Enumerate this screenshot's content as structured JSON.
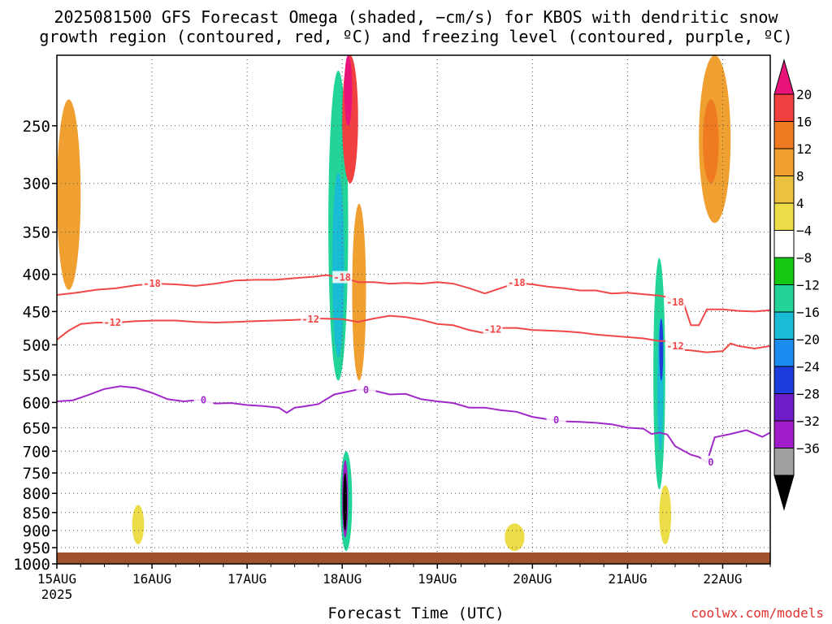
{
  "title": {
    "line1": "2025081500 GFS Forecast Omega (shaded, −cm/s) for KBOS with dendritic snow",
    "line2": "growth region (contoured, red, ºC) and freezing level (contoured, purple, ºC)"
  },
  "credit": "coolwx.com/models",
  "chart_data": {
    "type": "heatmap",
    "title": "2025081500 GFS Forecast Omega (shaded, −cm/s) for KBOS with dendritic snow growth region (contoured, red, ºC) and freezing level (contoured, purple, ºC)",
    "xlabel": "Forecast Time (UTC)",
    "ylabel": "",
    "x_ticks": [
      "15AUG",
      "16AUG",
      "17AUG",
      "18AUG",
      "19AUG",
      "20AUG",
      "21AUG",
      "22AUG"
    ],
    "x_tick_sub": "2025",
    "x_range_hours": [
      0,
      180
    ],
    "y_ticks": [
      250,
      300,
      350,
      400,
      450,
      500,
      550,
      600,
      650,
      700,
      750,
      800,
      850,
      900,
      950,
      1000
    ],
    "y_range_hpa": [
      200,
      1000
    ],
    "y_reversed": true,
    "grid": true,
    "colorbar": {
      "ticks": [
        "20",
        "16",
        "12",
        "8",
        "4",
        "−4",
        "−8",
        "−12",
        "−16",
        "−20",
        "−24",
        "−28",
        "−32",
        "−36"
      ],
      "colors": [
        "#e8147a",
        "#f04040",
        "#f07a20",
        "#f0a030",
        "#ecc040",
        "#ecdc48",
        "#ffffff",
        "#14c814",
        "#22d49a",
        "#18bcd4",
        "#1c8cf0",
        "#1c3cdc",
        "#6e1cc8",
        "#a01cc8",
        "#a0a0a0",
        "#000000"
      ]
    },
    "series": [
      {
        "name": "-18",
        "color": "#f04848",
        "points": [
          [
            0,
            427
          ],
          [
            5,
            424
          ],
          [
            10,
            420
          ],
          [
            15,
            418
          ],
          [
            20,
            414
          ],
          [
            25,
            412
          ],
          [
            30,
            413
          ],
          [
            35,
            415
          ],
          [
            40,
            412
          ],
          [
            45,
            408
          ],
          [
            50,
            407
          ],
          [
            55,
            407
          ],
          [
            60,
            405
          ],
          [
            65,
            403
          ],
          [
            68,
            401
          ],
          [
            72,
            404
          ],
          [
            76,
            410
          ],
          [
            80,
            410
          ],
          [
            84,
            412
          ],
          [
            88,
            411
          ],
          [
            92,
            412
          ],
          [
            96,
            410
          ],
          [
            100,
            412
          ],
          [
            104,
            418
          ],
          [
            108,
            425
          ],
          [
            112,
            418
          ],
          [
            116,
            411
          ],
          [
            120,
            413
          ],
          [
            124,
            416
          ],
          [
            128,
            418
          ],
          [
            132,
            421
          ],
          [
            136,
            421
          ],
          [
            140,
            425
          ],
          [
            144,
            424
          ],
          [
            148,
            426
          ],
          [
            152,
            428
          ],
          [
            154,
            430
          ],
          [
            156,
            437
          ],
          [
            158,
            436
          ],
          [
            160,
            470
          ],
          [
            162,
            470
          ],
          [
            164,
            447
          ],
          [
            168,
            447
          ],
          [
            172,
            449
          ],
          [
            176,
            450
          ],
          [
            180,
            448
          ]
        ]
      },
      {
        "name": "-12",
        "color": "#f04848",
        "points": [
          [
            0,
            492
          ],
          [
            3,
            478
          ],
          [
            6,
            468
          ],
          [
            10,
            466
          ],
          [
            15,
            466
          ],
          [
            20,
            464
          ],
          [
            25,
            463
          ],
          [
            30,
            463
          ],
          [
            35,
            465
          ],
          [
            40,
            466
          ],
          [
            45,
            465
          ],
          [
            50,
            464
          ],
          [
            55,
            463
          ],
          [
            60,
            462
          ],
          [
            66,
            460
          ],
          [
            72,
            461
          ],
          [
            76,
            465
          ],
          [
            80,
            460
          ],
          [
            84,
            456
          ],
          [
            88,
            458
          ],
          [
            92,
            462
          ],
          [
            96,
            468
          ],
          [
            100,
            470
          ],
          [
            104,
            477
          ],
          [
            108,
            482
          ],
          [
            112,
            474
          ],
          [
            116,
            474
          ],
          [
            120,
            477
          ],
          [
            124,
            478
          ],
          [
            128,
            479
          ],
          [
            132,
            481
          ],
          [
            136,
            484
          ],
          [
            140,
            486
          ],
          [
            144,
            488
          ],
          [
            148,
            490
          ],
          [
            152,
            494
          ],
          [
            154,
            494
          ],
          [
            156,
            502
          ],
          [
            158,
            508
          ],
          [
            160,
            509
          ],
          [
            164,
            512
          ],
          [
            168,
            510
          ],
          [
            170,
            498
          ],
          [
            172,
            502
          ],
          [
            176,
            506
          ],
          [
            180,
            502
          ]
        ]
      },
      {
        "name": "0",
        "color": "#a028c8",
        "points": [
          [
            0,
            598
          ],
          [
            4,
            596
          ],
          [
            8,
            586
          ],
          [
            12,
            575
          ],
          [
            16,
            570
          ],
          [
            20,
            573
          ],
          [
            24,
            582
          ],
          [
            28,
            594
          ],
          [
            32,
            598
          ],
          [
            36,
            595
          ],
          [
            40,
            602
          ],
          [
            44,
            601
          ],
          [
            48,
            605
          ],
          [
            52,
            607
          ],
          [
            56,
            610
          ],
          [
            58,
            620
          ],
          [
            60,
            610
          ],
          [
            62,
            608
          ],
          [
            66,
            603
          ],
          [
            70,
            585
          ],
          [
            76,
            576
          ],
          [
            80,
            578
          ],
          [
            84,
            585
          ],
          [
            88,
            584
          ],
          [
            92,
            594
          ],
          [
            96,
            598
          ],
          [
            100,
            601
          ],
          [
            104,
            610
          ],
          [
            108,
            610
          ],
          [
            112,
            615
          ],
          [
            116,
            618
          ],
          [
            120,
            628
          ],
          [
            124,
            633
          ],
          [
            128,
            637
          ],
          [
            132,
            638
          ],
          [
            136,
            640
          ],
          [
            140,
            643
          ],
          [
            144,
            650
          ],
          [
            148,
            652
          ],
          [
            150,
            663
          ],
          [
            152,
            660
          ],
          [
            154,
            664
          ],
          [
            156,
            689
          ],
          [
            160,
            708
          ],
          [
            162,
            713
          ],
          [
            164,
            725
          ],
          [
            166,
            670
          ],
          [
            170,
            663
          ],
          [
            174,
            655
          ],
          [
            178,
            669
          ],
          [
            180,
            660
          ]
        ]
      }
    ],
    "omega_cells": [
      {
        "x": [
          71.5,
          74.5
        ],
        "p": [
          700,
          960
        ],
        "value": -8
      },
      {
        "x": [
          72.0,
          73.5
        ],
        "p": [
          720,
          920
        ],
        "value": -28
      },
      {
        "x": [
          72.2,
          73.2
        ],
        "p": [
          750,
          900
        ],
        "value": -36
      },
      {
        "x": [
          68.5,
          73.5
        ],
        "p": [
          210,
          560
        ],
        "value": -8
      },
      {
        "x": [
          69.5,
          72.5
        ],
        "p": [
          290,
          520
        ],
        "value": -12
      },
      {
        "x": [
          150.5,
          153.5
        ],
        "p": [
          380,
          790
        ],
        "value": -8
      },
      {
        "x": [
          151.5,
          153.0
        ],
        "p": [
          460,
          700
        ],
        "value": -12
      },
      {
        "x": [
          152.0,
          153.0
        ],
        "p": [
          460,
          560
        ],
        "value": -20
      },
      {
        "x": [
          72.0,
          76.0
        ],
        "p": [
          200,
          300
        ],
        "value": 16
      },
      {
        "x": [
          72.5,
          74.5
        ],
        "p": [
          200,
          250
        ],
        "value": 20
      },
      {
        "x": [
          74.5,
          78.0
        ],
        "p": [
          320,
          560
        ],
        "value": 8
      },
      {
        "x": [
          0,
          6.0
        ],
        "p": [
          230,
          420
        ],
        "value": 8
      },
      {
        "x": [
          162.0,
          170.0
        ],
        "p": [
          200,
          340
        ],
        "value": 8
      },
      {
        "x": [
          163.0,
          167.0
        ],
        "p": [
          230,
          300
        ],
        "value": 12
      },
      {
        "x": [
          19.0,
          22.0
        ],
        "p": [
          830,
          940
        ],
        "value": 4
      },
      {
        "x": [
          113.0,
          118.0
        ],
        "p": [
          880,
          960
        ],
        "value": 4
      },
      {
        "x": [
          152.0,
          155.0
        ],
        "p": [
          780,
          940
        ],
        "value": 4
      }
    ]
  }
}
